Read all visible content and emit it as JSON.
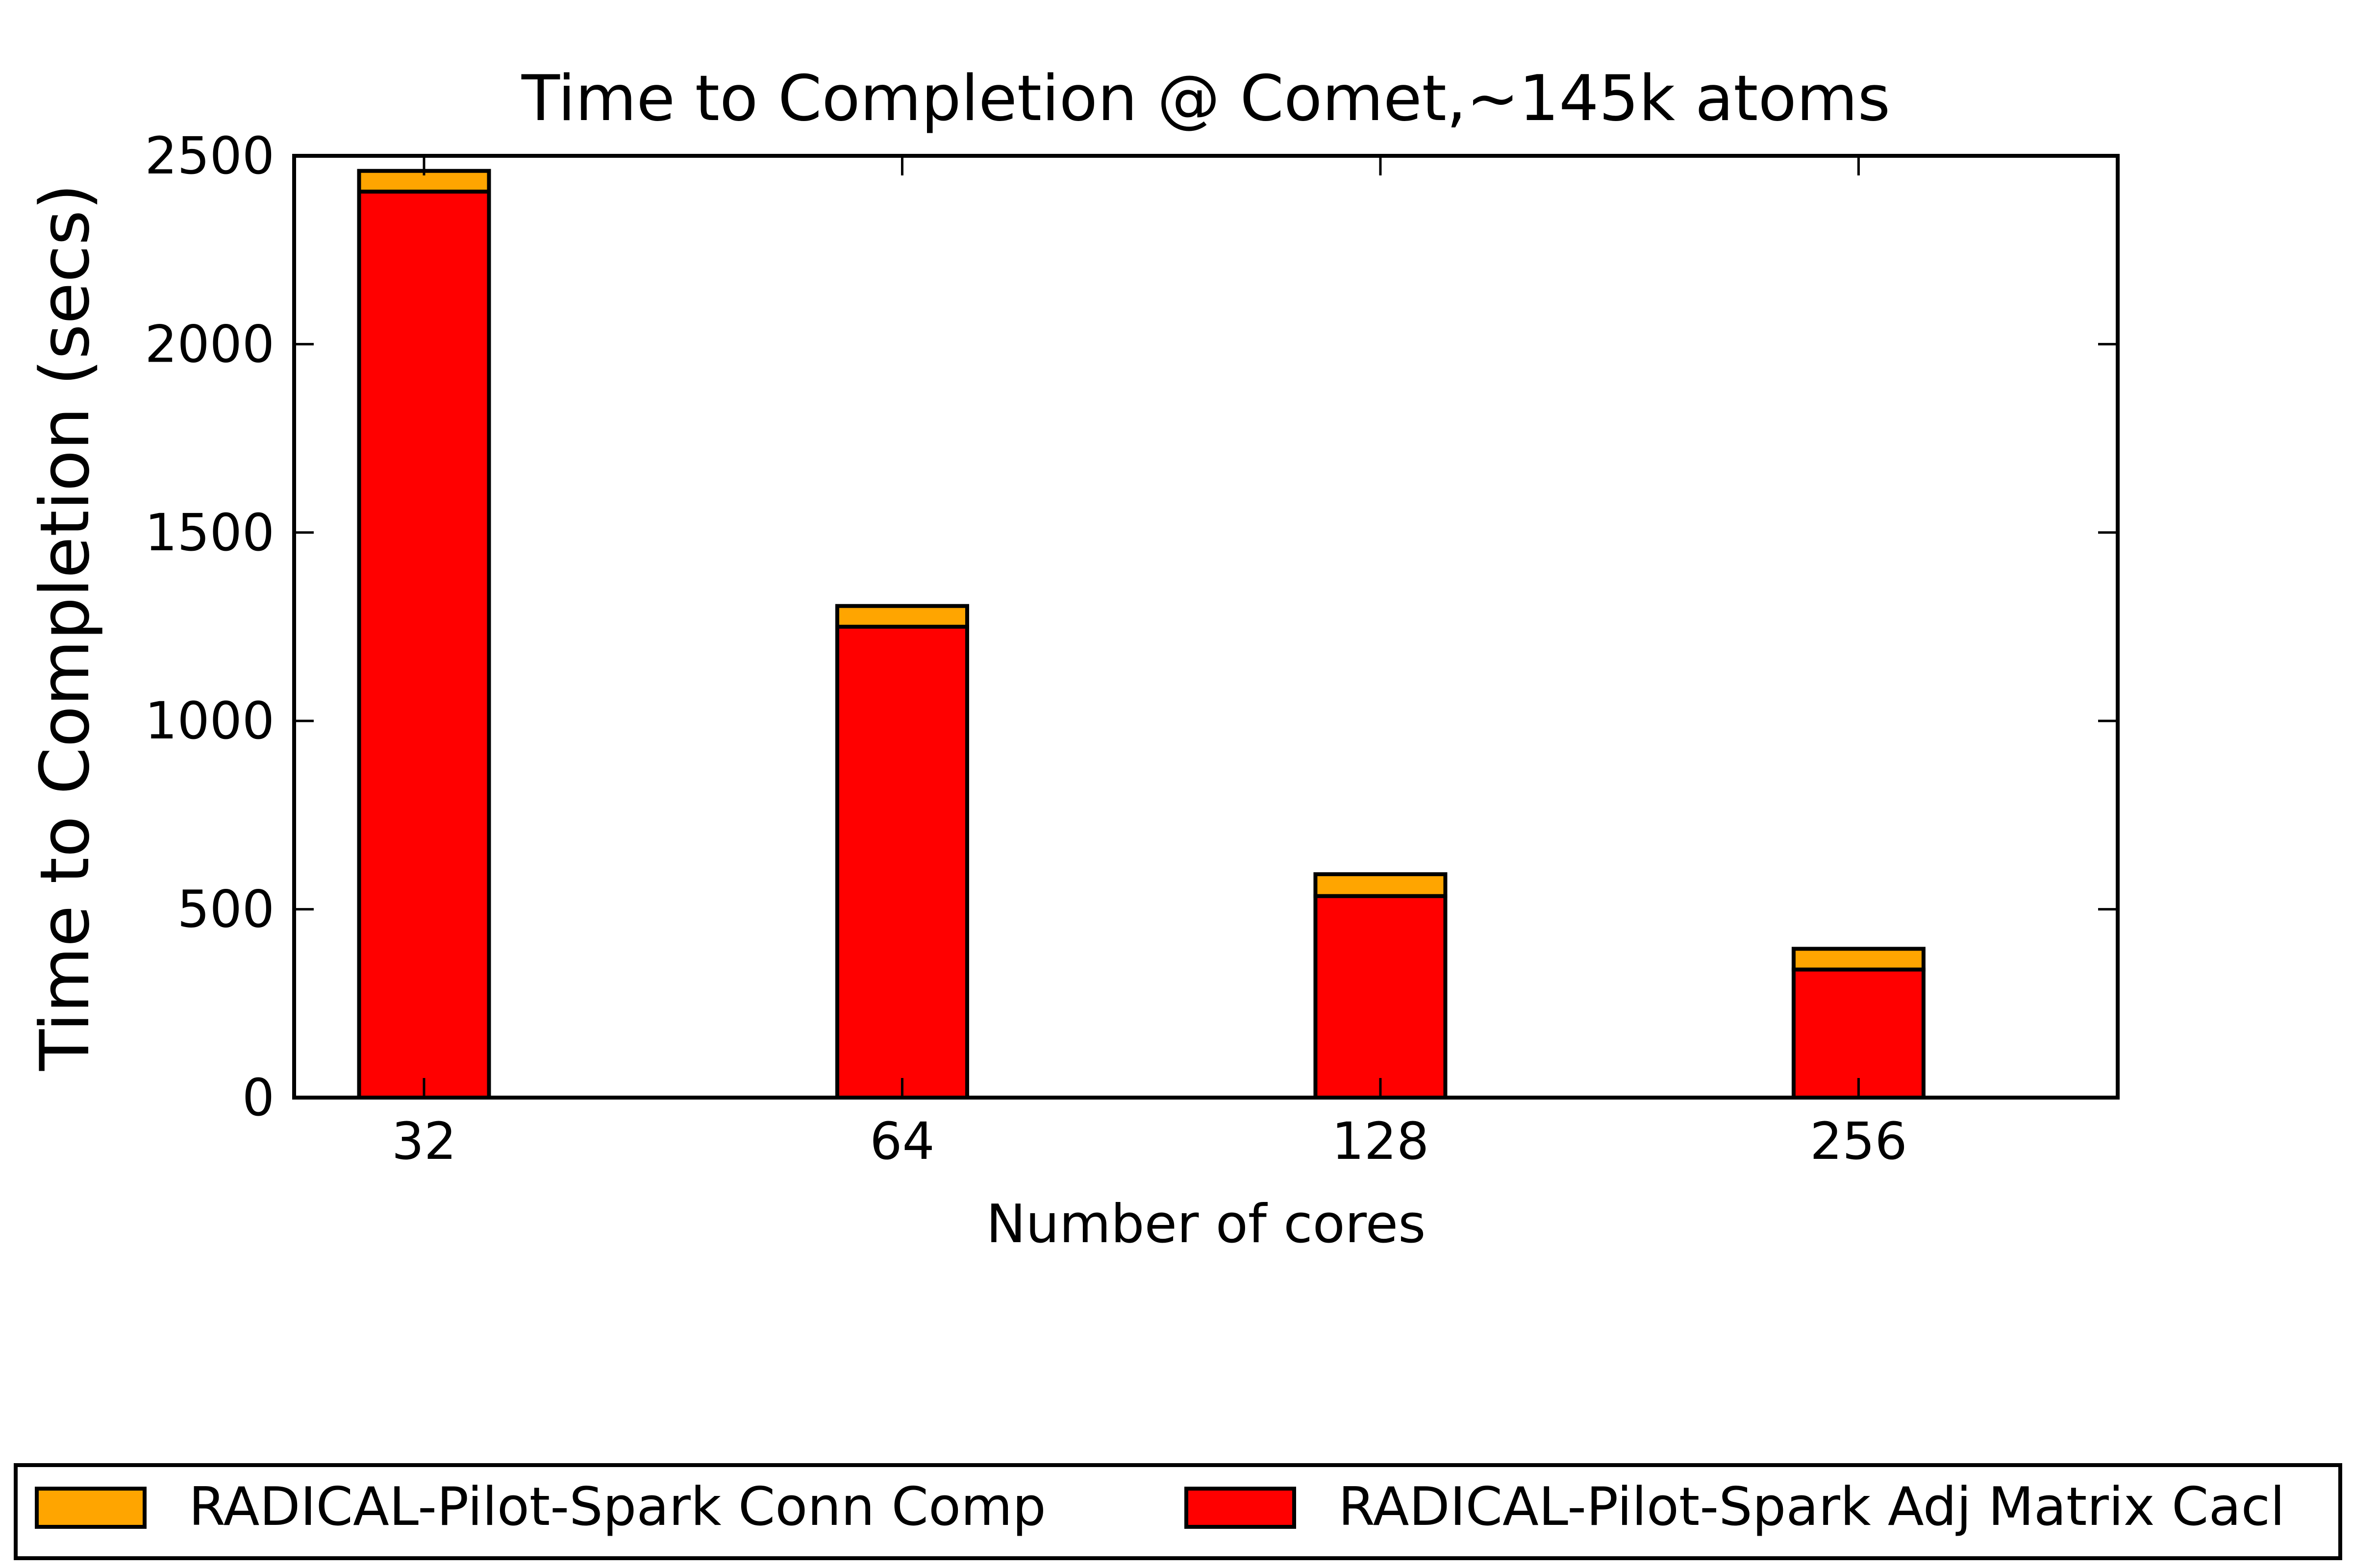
{
  "chart_data": {
    "type": "bar",
    "stacked": true,
    "title": "Time to Completion @ Comet,~145k atoms",
    "xlabel": "Number of cores",
    "ylabel": "Time to Completion (secs)",
    "categories": [
      "32",
      "64",
      "128",
      "256"
    ],
    "ylim": [
      0,
      2500
    ],
    "yticks": [
      0,
      500,
      1000,
      1500,
      2000,
      2500
    ],
    "grid": false,
    "legend_position": "bottom",
    "series": [
      {
        "name": "RADICAL-Pilot-Spark Adj Matrix Cacl",
        "color": "#ff0000",
        "values": [
          2405,
          1250,
          535,
          340
        ]
      },
      {
        "name": "RADICAL-Pilot-Spark Conn Comp",
        "color": "#ffa500",
        "values": [
          55,
          55,
          58,
          55
        ]
      }
    ],
    "legend_order": [
      "RADICAL-Pilot-Spark Conn Comp",
      "RADICAL-Pilot-Spark Adj Matrix Cacl"
    ]
  }
}
